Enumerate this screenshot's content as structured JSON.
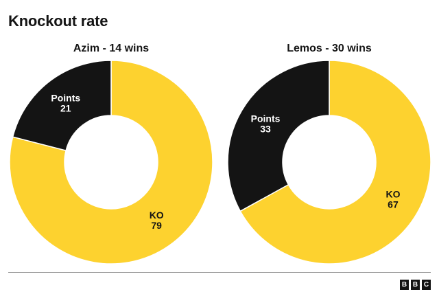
{
  "title": "Knockout rate",
  "colors": {
    "ko": "#fdd22f",
    "points": "#141414",
    "background": "#ffffff"
  },
  "chart_data": [
    {
      "type": "pie",
      "subtitle": "Azim - 14 wins",
      "slices": [
        {
          "label": "Points",
          "value": 21,
          "color": "#141414"
        },
        {
          "label": "KO",
          "value": 79,
          "color": "#fdd22f"
        }
      ]
    },
    {
      "type": "pie",
      "subtitle": "Lemos - 30 wins",
      "slices": [
        {
          "label": "Points",
          "value": 33,
          "color": "#141414"
        },
        {
          "label": "KO",
          "value": 67,
          "color": "#fdd22f"
        }
      ]
    }
  ],
  "logo": {
    "letters": [
      "B",
      "B",
      "C"
    ]
  }
}
